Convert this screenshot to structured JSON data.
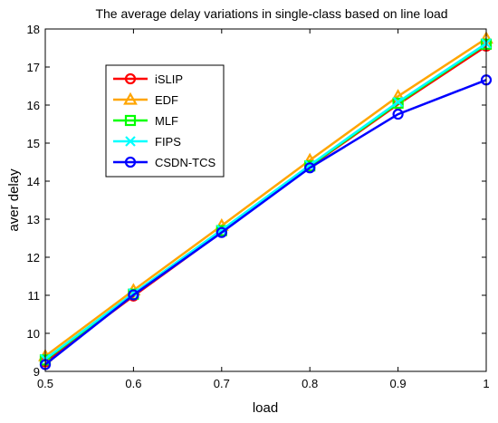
{
  "chart_data": {
    "type": "line",
    "title": "The average delay variations in single-class based on line load",
    "xlabel": "load",
    "ylabel": "aver delay",
    "xlim": [
      0.5,
      1
    ],
    "ylim": [
      9,
      18
    ],
    "x_ticks": [
      "0.5",
      "0.6",
      "0.7",
      "0.8",
      "0.9",
      "1"
    ],
    "y_ticks": [
      "9",
      "10",
      "11",
      "12",
      "13",
      "14",
      "15",
      "16",
      "17",
      "18"
    ],
    "x": [
      0.5,
      0.6,
      0.7,
      0.8,
      0.9,
      1.0
    ],
    "grid": false,
    "legend_position": "upper-left-inside",
    "series": [
      {
        "name": "iSLIP",
        "color": "#ff0000",
        "marker": "circle",
        "values": [
          9.25,
          10.98,
          12.66,
          14.38,
          16.02,
          17.55
        ]
      },
      {
        "name": "EDF",
        "color": "#ffa500",
        "marker": "triangle",
        "values": [
          9.4,
          11.13,
          12.83,
          14.55,
          16.23,
          17.75
        ]
      },
      {
        "name": "MLF",
        "color": "#00ff00",
        "marker": "square",
        "values": [
          9.3,
          11.03,
          12.7,
          14.4,
          16.05,
          17.6
        ]
      },
      {
        "name": "FIPS",
        "color": "#00ffff",
        "marker": "x",
        "values": [
          9.32,
          11.05,
          12.72,
          14.42,
          16.08,
          17.62
        ]
      },
      {
        "name": "CSDN-TCS",
        "color": "#0000ff",
        "marker": "circle",
        "values": [
          9.18,
          11.01,
          12.65,
          14.35,
          15.76,
          16.66
        ]
      }
    ]
  }
}
